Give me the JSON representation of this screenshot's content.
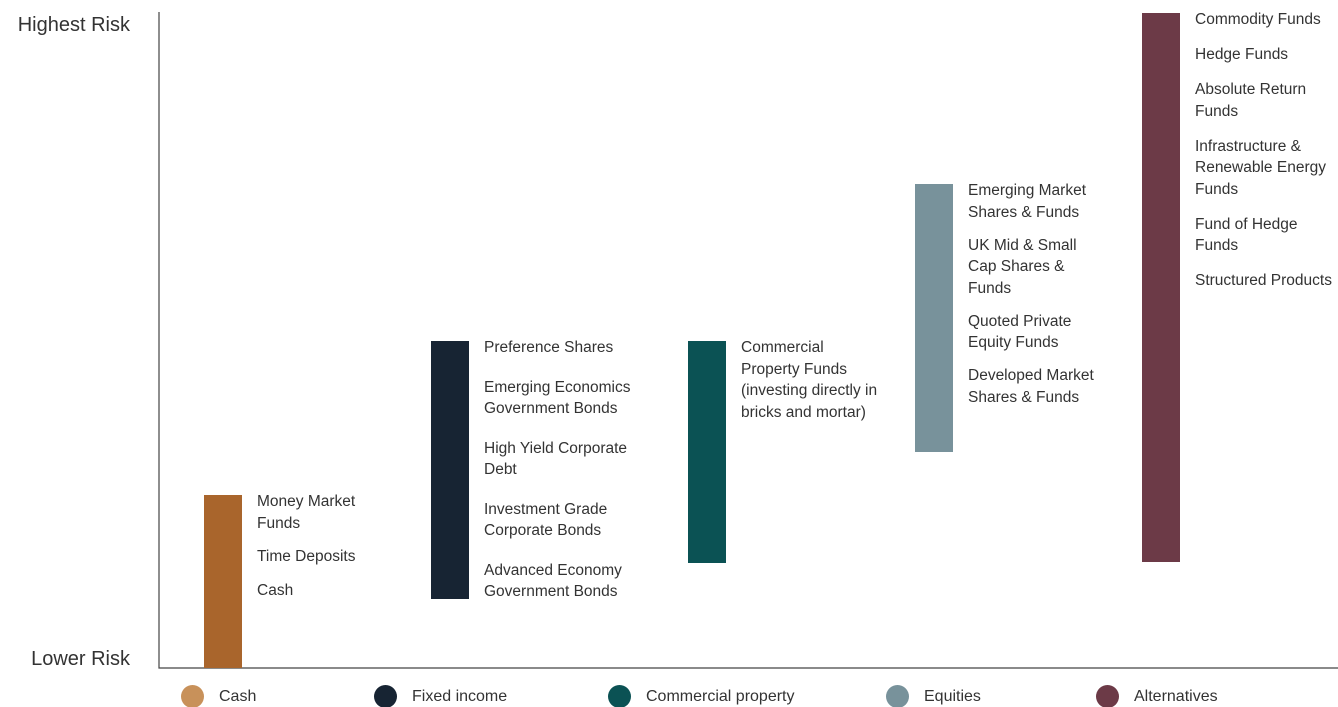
{
  "axis": {
    "top_label": "Highest Risk",
    "bottom_label": "Lower Risk"
  },
  "groups": [
    {
      "name": "Cash",
      "color": "#a9652c",
      "legend_color": "#c8915a",
      "items": [
        "Money Market Funds",
        "Time Deposits",
        "Cash"
      ]
    },
    {
      "name": "Fixed income",
      "color": "#172433",
      "legend_color": "#172433",
      "items": [
        "Preference Shares",
        "Emerging Economics Government Bonds",
        "High Yield Corporate Debt",
        "Investment Grade Corporate Bonds",
        "Advanced Economy Government Bonds"
      ]
    },
    {
      "name": "Commercial property",
      "color": "#0b5254",
      "legend_color": "#0b5254",
      "items": [
        "Commercial Property Funds (investing directly in bricks and mortar)"
      ]
    },
    {
      "name": "Equities",
      "color": "#78929b",
      "legend_color": "#78929b",
      "items": [
        "Emerging Market Shares & Funds",
        "UK Mid & Small Cap Shares & Funds",
        "Quoted Private Equity Funds",
        "Developed Market Shares & Funds"
      ]
    },
    {
      "name": "Alternatives",
      "color": "#6c3a47",
      "legend_color": "#6c3a47",
      "items": [
        "Commodity Funds",
        "Hedge Funds",
        "Absolute Return Funds",
        "Infrastructure & Renewable Energy Funds",
        "Fund of Hedge Funds",
        "Structured Products"
      ]
    }
  ]
}
